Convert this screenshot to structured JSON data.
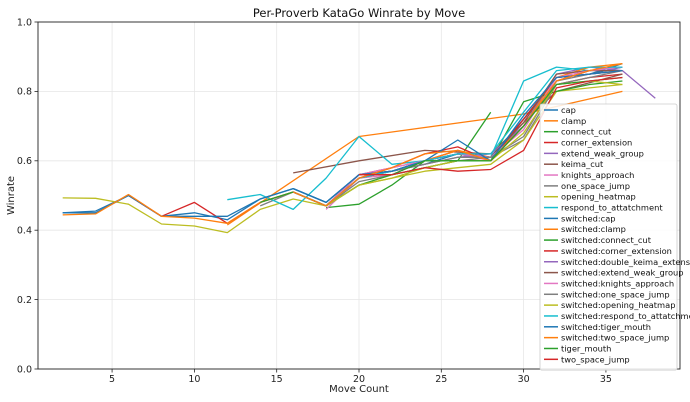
{
  "chart_data": {
    "type": "line",
    "title": "Per-Proverb KataGo Winrate by Move",
    "xlabel": "Move Count",
    "ylabel": "Winrate",
    "xlim": [
      0.5,
      39.5
    ],
    "ylim": [
      0.0,
      1.0
    ],
    "xticks": [
      5,
      10,
      15,
      20,
      25,
      30,
      35
    ],
    "yticks": [
      0.0,
      0.2,
      0.4,
      0.6,
      0.8,
      1.0
    ],
    "xtick_labels": [
      "5",
      "10",
      "15",
      "20",
      "25",
      "30",
      "35"
    ],
    "ytick_labels": [
      "0.0",
      "0.2",
      "0.4",
      "0.6",
      "0.8",
      "1.0"
    ],
    "grid": true,
    "legend": "right",
    "series": [
      {
        "name": "cap",
        "color": "#1f77b4",
        "x": [
          2,
          4,
          6,
          8,
          10,
          12,
          14,
          16,
          18,
          20,
          22,
          24,
          26,
          28,
          30,
          32,
          34,
          36
        ],
        "y": [
          0.45,
          0.455,
          0.5,
          0.44,
          0.45,
          0.43,
          0.49,
          0.52,
          0.48,
          0.56,
          0.57,
          0.6,
          0.62,
          0.61,
          0.72,
          0.84,
          0.85,
          0.87
        ]
      },
      {
        "name": "clamp",
        "color": "#ff7f0e",
        "x": [
          12,
          20,
          30,
          36
        ],
        "y": [
          0.415,
          0.67,
          0.735,
          0.8
        ]
      },
      {
        "name": "connect_cut",
        "color": "#2ca02c",
        "x": [
          18,
          20,
          22,
          24,
          26,
          28
        ],
        "y": [
          0.465,
          0.475,
          0.53,
          0.6,
          0.6,
          0.74
        ]
      },
      {
        "name": "corner_extension",
        "color": "#d62728",
        "x": [
          6,
          8,
          10,
          12,
          14,
          16,
          18,
          20,
          22,
          24,
          26,
          28,
          30,
          32,
          34,
          36
        ],
        "y": [
          0.5,
          0.44,
          0.48,
          0.42,
          0.48,
          0.51,
          0.47,
          0.56,
          0.57,
          0.6,
          0.63,
          0.6,
          0.7,
          0.82,
          0.84,
          0.85
        ]
      },
      {
        "name": "extend_weak_group",
        "color": "#9467bd",
        "x": [
          20,
          22,
          24,
          26,
          28,
          30,
          32,
          34,
          36,
          38
        ],
        "y": [
          0.55,
          0.58,
          0.6,
          0.62,
          0.62,
          0.7,
          0.85,
          0.87,
          0.86,
          0.78
        ]
      },
      {
        "name": "keima_cut",
        "color": "#8c564b",
        "x": [
          16,
          20,
          24,
          28,
          32,
          36
        ],
        "y": [
          0.565,
          0.6,
          0.63,
          0.62,
          0.8,
          0.85
        ]
      },
      {
        "name": "knights_approach",
        "color": "#e377c2",
        "x": [
          18,
          20,
          22,
          24,
          26,
          28,
          30,
          32,
          34,
          36
        ],
        "y": [
          0.46,
          0.55,
          0.56,
          0.6,
          0.62,
          0.6,
          0.7,
          0.83,
          0.86,
          0.87
        ]
      },
      {
        "name": "one_space_jump",
        "color": "#7f7f7f",
        "x": [
          14,
          16,
          18,
          20,
          22,
          24,
          26,
          28,
          30,
          32,
          34,
          36
        ],
        "y": [
          0.47,
          0.51,
          0.47,
          0.54,
          0.56,
          0.58,
          0.6,
          0.61,
          0.66,
          0.82,
          0.84,
          0.86
        ]
      },
      {
        "name": "opening_heatmap",
        "color": "#bcbd22",
        "x": [
          2,
          4,
          6,
          8,
          10,
          12,
          14,
          16,
          18,
          20,
          22,
          24,
          26,
          28,
          30,
          32,
          34,
          36
        ],
        "y": [
          0.493,
          0.492,
          0.475,
          0.418,
          0.412,
          0.393,
          0.46,
          0.49,
          0.47,
          0.53,
          0.55,
          0.57,
          0.58,
          0.59,
          0.66,
          0.8,
          0.81,
          0.82
        ]
      },
      {
        "name": "respond_to_attatchment",
        "color": "#17becf",
        "x": [
          12,
          14,
          16,
          18,
          20,
          22,
          24,
          26,
          28,
          30,
          32,
          34,
          36
        ],
        "y": [
          0.488,
          0.503,
          0.46,
          0.55,
          0.67,
          0.59,
          0.6,
          0.62,
          0.61,
          0.83,
          0.87,
          0.86,
          0.87
        ]
      },
      {
        "name": "switched:cap",
        "color": "#1f77b4",
        "x": [
          2,
          4,
          6,
          8,
          10,
          12,
          14,
          16,
          18,
          20,
          22,
          24,
          26,
          28,
          30,
          32,
          34,
          36
        ],
        "y": [
          0.45,
          0.45,
          0.5,
          0.44,
          0.44,
          0.44,
          0.49,
          0.52,
          0.48,
          0.56,
          0.57,
          0.59,
          0.62,
          0.61,
          0.72,
          0.84,
          0.85,
          0.88
        ]
      },
      {
        "name": "switched:clamp",
        "color": "#ff7f0e",
        "x": [
          2,
          4,
          6,
          8,
          10,
          12,
          14,
          16,
          18,
          20,
          22,
          24,
          26,
          28,
          30,
          32,
          34,
          36
        ],
        "y": [
          0.444,
          0.447,
          0.503,
          0.44,
          0.435,
          0.42,
          0.48,
          0.51,
          0.47,
          0.55,
          0.57,
          0.6,
          0.63,
          0.61,
          0.7,
          0.84,
          0.87,
          0.88
        ]
      },
      {
        "name": "switched:connect_cut",
        "color": "#2ca02c",
        "x": [
          14,
          16,
          18,
          20,
          22,
          24,
          26,
          28,
          30,
          32,
          34,
          36
        ],
        "y": [
          0.48,
          0.51,
          0.47,
          0.53,
          0.56,
          0.58,
          0.6,
          0.6,
          0.77,
          0.8,
          0.82,
          0.83
        ]
      },
      {
        "name": "switched:corner_extension",
        "color": "#d62728",
        "x": [
          16,
          18,
          20,
          22,
          24,
          26,
          28,
          30,
          32,
          34,
          36
        ],
        "y": [
          0.51,
          0.47,
          0.56,
          0.58,
          0.62,
          0.64,
          0.6,
          0.72,
          0.84,
          0.85,
          0.86
        ]
      },
      {
        "name": "switched:double_keima_extension",
        "color": "#9467bd",
        "x": [
          16,
          18,
          20,
          22,
          24,
          26,
          28,
          30,
          32,
          34,
          36
        ],
        "y": [
          0.51,
          0.47,
          0.55,
          0.57,
          0.59,
          0.61,
          0.62,
          0.7,
          0.83,
          0.86,
          0.87
        ]
      },
      {
        "name": "switched:extend_weak_group",
        "color": "#8c564b",
        "x": [
          18,
          20,
          22,
          24,
          26,
          28,
          30,
          32,
          34,
          36
        ],
        "y": [
          0.47,
          0.56,
          0.57,
          0.6,
          0.62,
          0.61,
          0.71,
          0.85,
          0.86,
          0.86
        ]
      },
      {
        "name": "switched:knights_approach",
        "color": "#e377c2",
        "x": [
          16,
          18,
          20,
          22,
          24,
          26,
          28,
          30,
          32,
          34,
          36
        ],
        "y": [
          0.51,
          0.47,
          0.56,
          0.58,
          0.6,
          0.62,
          0.61,
          0.69,
          0.84,
          0.86,
          0.87
        ]
      },
      {
        "name": "switched:one_space_jump",
        "color": "#7f7f7f",
        "x": [
          16,
          18,
          20,
          22,
          24,
          26,
          28,
          30,
          32,
          34,
          36
        ],
        "y": [
          0.51,
          0.47,
          0.55,
          0.57,
          0.59,
          0.61,
          0.61,
          0.67,
          0.83,
          0.85,
          0.86
        ]
      },
      {
        "name": "switched:opening_heatmap",
        "color": "#bcbd22",
        "x": [
          18,
          20,
          22,
          24,
          26,
          28,
          30,
          32,
          34,
          36
        ],
        "y": [
          0.47,
          0.53,
          0.55,
          0.58,
          0.6,
          0.6,
          0.68,
          0.82,
          0.83,
          0.82
        ]
      },
      {
        "name": "switched:respond_to_attatchment",
        "color": "#17becf",
        "x": [
          16,
          18,
          20,
          22,
          24,
          26,
          28,
          30,
          32,
          34,
          36
        ],
        "y": [
          0.51,
          0.47,
          0.55,
          0.57,
          0.6,
          0.62,
          0.62,
          0.74,
          0.86,
          0.87,
          0.87
        ]
      },
      {
        "name": "switched:tiger_mouth",
        "color": "#1f77b4",
        "x": [
          16,
          18,
          20,
          22,
          24,
          26,
          28,
          30,
          32,
          34,
          36
        ],
        "y": [
          0.52,
          0.48,
          0.56,
          0.57,
          0.6,
          0.66,
          0.6,
          0.73,
          0.84,
          0.85,
          0.86
        ]
      },
      {
        "name": "switched:two_space_jump",
        "color": "#ff7f0e",
        "x": [
          16,
          18,
          20,
          22,
          24,
          26,
          28,
          30,
          32,
          34,
          36
        ],
        "y": [
          0.51,
          0.47,
          0.55,
          0.58,
          0.62,
          0.63,
          0.6,
          0.7,
          0.83,
          0.86,
          0.88
        ]
      },
      {
        "name": "tiger_mouth",
        "color": "#2ca02c",
        "x": [
          22,
          24,
          26,
          28,
          30,
          32,
          34,
          36
        ],
        "y": [
          0.56,
          0.6,
          0.6,
          0.6,
          0.7,
          0.82,
          0.83,
          0.84
        ]
      },
      {
        "name": "two_space_jump",
        "color": "#d62728",
        "x": [
          20,
          22,
          24,
          26,
          28,
          30,
          32,
          34,
          36
        ],
        "y": [
          0.56,
          0.56,
          0.58,
          0.57,
          0.575,
          0.63,
          0.81,
          0.83,
          0.84
        ]
      }
    ]
  }
}
